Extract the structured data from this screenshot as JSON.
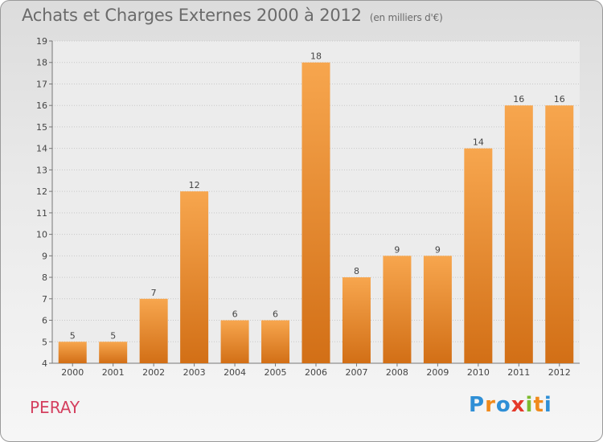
{
  "chart_data": {
    "type": "bar",
    "title": "Achats et Charges Externes 2000 à 2012",
    "unit": "(en milliers d'€)",
    "categories": [
      "2000",
      "2001",
      "2002",
      "2003",
      "2004",
      "2005",
      "2006",
      "2007",
      "2008",
      "2009",
      "2010",
      "2011",
      "2012"
    ],
    "values": [
      5,
      5,
      7,
      12,
      6,
      6,
      18,
      8,
      9,
      9,
      14,
      16,
      16
    ],
    "ylim": [
      4,
      19
    ],
    "yticks": [
      4,
      5,
      6,
      7,
      8,
      9,
      10,
      11,
      12,
      13,
      14,
      15,
      16,
      17,
      18,
      19
    ],
    "grid": true,
    "bar_color": "#f0922e"
  },
  "footer": {
    "commune": "PERAY",
    "logo_letters": [
      "P",
      "r",
      "o",
      "x",
      "i",
      "t",
      "i"
    ]
  }
}
